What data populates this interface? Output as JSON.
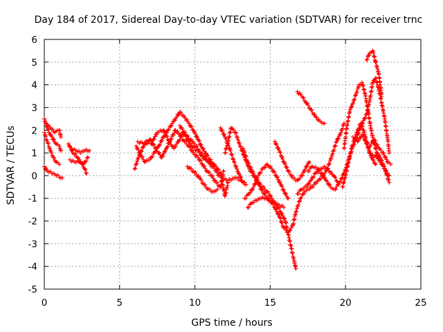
{
  "chart_data": {
    "type": "scatter",
    "title": "Day 184 of 2017, Sidereal Day-to-day VTEC variation (SDTVAR) for receiver trnc",
    "xlabel": "GPS time / hours",
    "ylabel": "SDTVAR / TECUs",
    "xlim": [
      0,
      25
    ],
    "ylim": [
      -5,
      6
    ],
    "xticks": [
      "0",
      "5",
      "10",
      "15",
      "20",
      "25"
    ],
    "yticks": [
      "-5",
      "-4",
      "-3",
      "-2",
      "-1",
      "0",
      "1",
      "2",
      "3",
      "4",
      "5",
      "6"
    ],
    "grid": true,
    "marker": "+",
    "marker_color": "#ff0000",
    "series": [
      {
        "name": "s1",
        "points": [
          [
            0.0,
            2.5
          ],
          [
            0.2,
            2.1
          ],
          [
            0.4,
            1.8
          ],
          [
            0.6,
            1.6
          ],
          [
            0.8,
            1.4
          ],
          [
            1.0,
            1.3
          ],
          [
            1.1,
            1.1
          ]
        ]
      },
      {
        "name": "s2",
        "points": [
          [
            0.1,
            2.3
          ],
          [
            0.4,
            2.1
          ],
          [
            0.7,
            1.9
          ],
          [
            1.0,
            2.0
          ],
          [
            1.1,
            1.7
          ]
        ]
      },
      {
        "name": "s3",
        "points": [
          [
            0.0,
            1.9
          ],
          [
            0.2,
            1.5
          ],
          [
            0.4,
            1.1
          ],
          [
            0.6,
            0.8
          ],
          [
            0.8,
            0.6
          ],
          [
            1.0,
            0.5
          ]
        ]
      },
      {
        "name": "s4",
        "points": [
          [
            0.0,
            0.4
          ],
          [
            0.2,
            0.2
          ],
          [
            0.5,
            0.1
          ],
          [
            0.8,
            0.0
          ],
          [
            1.2,
            -0.1
          ]
        ]
      },
      {
        "name": "s5",
        "points": [
          [
            1.6,
            1.4
          ],
          [
            1.9,
            1.0
          ],
          [
            2.2,
            0.8
          ],
          [
            2.5,
            0.5
          ],
          [
            2.7,
            0.3
          ],
          [
            2.8,
            0.1
          ]
        ]
      },
      {
        "name": "s6",
        "points": [
          [
            1.8,
            1.2
          ],
          [
            2.1,
            1.1
          ],
          [
            2.4,
            1.0
          ],
          [
            2.7,
            1.1
          ],
          [
            3.0,
            1.1
          ]
        ]
      },
      {
        "name": "s7",
        "points": [
          [
            1.7,
            0.7
          ],
          [
            2.0,
            0.6
          ],
          [
            2.3,
            0.6
          ],
          [
            2.6,
            0.5
          ],
          [
            2.9,
            0.8
          ]
        ]
      },
      {
        "name": "s8",
        "points": [
          [
            6.0,
            0.3
          ],
          [
            6.3,
            0.9
          ],
          [
            6.6,
            1.3
          ],
          [
            6.9,
            1.5
          ],
          [
            7.2,
            1.4
          ]
        ]
      },
      {
        "name": "s9",
        "points": [
          [
            6.1,
            1.3
          ],
          [
            6.4,
            0.9
          ],
          [
            6.7,
            0.6
          ],
          [
            7.0,
            0.7
          ],
          [
            7.3,
            1.0
          ],
          [
            7.6,
            1.3
          ],
          [
            7.9,
            1.7
          ],
          [
            8.2,
            2.0
          ],
          [
            8.5,
            2.3
          ],
          [
            8.8,
            2.6
          ],
          [
            9.0,
            2.8
          ],
          [
            9.3,
            2.6
          ],
          [
            9.6,
            2.3
          ],
          [
            9.9,
            2.0
          ],
          [
            10.2,
            1.6
          ],
          [
            10.5,
            1.2
          ],
          [
            10.8,
            0.9
          ],
          [
            11.1,
            0.6
          ],
          [
            11.4,
            0.4
          ],
          [
            11.7,
            0.1
          ],
          [
            11.9,
            -0.6
          ],
          [
            12.0,
            -0.9
          ],
          [
            12.2,
            -0.3
          ]
        ]
      },
      {
        "name": "s10",
        "points": [
          [
            6.2,
            1.5
          ],
          [
            6.6,
            1.4
          ],
          [
            7.0,
            1.6
          ],
          [
            7.4,
            1.2
          ],
          [
            7.8,
            0.8
          ],
          [
            8.1,
            1.2
          ],
          [
            8.4,
            1.6
          ],
          [
            8.7,
            2.0
          ],
          [
            9.0,
            1.8
          ],
          [
            9.3,
            1.5
          ],
          [
            9.6,
            1.3
          ],
          [
            9.9,
            1.0
          ],
          [
            10.2,
            0.8
          ],
          [
            10.5,
            0.5
          ],
          [
            10.8,
            0.2
          ],
          [
            11.1,
            0.0
          ],
          [
            11.4,
            -0.3
          ],
          [
            11.7,
            -0.5
          ],
          [
            11.9,
            0.2
          ]
        ]
      },
      {
        "name": "s11",
        "points": [
          [
            7.1,
            1.4
          ],
          [
            7.5,
            1.9
          ],
          [
            7.9,
            2.0
          ],
          [
            8.3,
            1.5
          ],
          [
            8.6,
            1.2
          ],
          [
            8.9,
            1.5
          ],
          [
            9.2,
            1.9
          ],
          [
            9.5,
            1.6
          ],
          [
            9.8,
            1.3
          ],
          [
            10.1,
            1.1
          ],
          [
            10.4,
            1.0
          ],
          [
            10.7,
            0.8
          ],
          [
            11.0,
            0.5
          ],
          [
            11.3,
            0.3
          ],
          [
            11.6,
            0.0
          ]
        ]
      },
      {
        "name": "s12",
        "points": [
          [
            9.0,
            2.2
          ],
          [
            9.4,
            1.8
          ],
          [
            9.8,
            1.5
          ],
          [
            10.1,
            1.3
          ],
          [
            10.4,
            0.9
          ],
          [
            10.7,
            0.7
          ],
          [
            11.0,
            0.6
          ],
          [
            11.3,
            0.4
          ]
        ]
      },
      {
        "name": "s13",
        "points": [
          [
            9.5,
            0.4
          ],
          [
            9.9,
            0.2
          ],
          [
            10.3,
            -0.1
          ],
          [
            10.6,
            -0.4
          ],
          [
            10.9,
            -0.6
          ],
          [
            11.2,
            -0.7
          ],
          [
            11.5,
            -0.6
          ]
        ]
      },
      {
        "name": "s14",
        "points": [
          [
            11.7,
            2.1
          ],
          [
            12.0,
            1.7
          ],
          [
            12.3,
            1.2
          ],
          [
            12.6,
            0.6
          ],
          [
            12.9,
            0.1
          ],
          [
            13.2,
            -0.3
          ],
          [
            13.4,
            -0.4
          ]
        ]
      },
      {
        "name": "s15",
        "points": [
          [
            11.8,
            -0.1
          ],
          [
            12.1,
            -0.2
          ],
          [
            12.4,
            -0.2
          ],
          [
            12.7,
            -0.1
          ],
          [
            13.0,
            -0.2
          ],
          [
            13.3,
            -0.3
          ]
        ]
      },
      {
        "name": "s16",
        "points": [
          [
            12.0,
            1.0
          ],
          [
            12.2,
            1.5
          ],
          [
            12.4,
            2.1
          ],
          [
            12.7,
            1.9
          ],
          [
            13.0,
            1.3
          ],
          [
            13.3,
            0.8
          ],
          [
            13.6,
            0.3
          ],
          [
            13.9,
            0.0
          ],
          [
            14.2,
            -0.3
          ],
          [
            14.5,
            -0.5
          ],
          [
            14.8,
            -0.7
          ],
          [
            15.1,
            -1.0
          ],
          [
            15.4,
            -1.3
          ],
          [
            15.7,
            -1.6
          ],
          [
            16.0,
            -2.0
          ],
          [
            16.2,
            -2.6
          ],
          [
            16.4,
            -3.2
          ],
          [
            16.6,
            -3.8
          ],
          [
            16.7,
            -4.1
          ]
        ]
      },
      {
        "name": "s17",
        "points": [
          [
            13.2,
            1.2
          ],
          [
            13.5,
            0.6
          ],
          [
            13.8,
            0.2
          ],
          [
            14.1,
            -0.2
          ],
          [
            14.4,
            -0.6
          ],
          [
            14.7,
            -0.9
          ],
          [
            15.0,
            -1.1
          ],
          [
            15.3,
            -1.4
          ],
          [
            15.6,
            -1.8
          ],
          [
            15.9,
            -2.3
          ],
          [
            16.2,
            -2.5
          ],
          [
            16.5,
            -2.2
          ],
          [
            16.7,
            -1.6
          ],
          [
            17.0,
            -1.0
          ],
          [
            17.3,
            -0.7
          ],
          [
            17.6,
            -0.6
          ],
          [
            17.9,
            -0.4
          ],
          [
            18.2,
            -0.2
          ],
          [
            18.5,
            0.0
          ],
          [
            18.8,
            0.3
          ],
          [
            19.1,
            0.9
          ],
          [
            19.4,
            1.5
          ],
          [
            19.7,
            1.9
          ],
          [
            19.9,
            2.3
          ]
        ]
      },
      {
        "name": "s18",
        "points": [
          [
            13.3,
            -1.0
          ],
          [
            13.6,
            -0.8
          ],
          [
            13.9,
            -0.5
          ],
          [
            14.2,
            0.0
          ],
          [
            14.5,
            0.3
          ],
          [
            14.8,
            0.5
          ],
          [
            15.1,
            0.3
          ],
          [
            15.4,
            0.0
          ],
          [
            15.7,
            -0.4
          ],
          [
            16.0,
            -0.8
          ],
          [
            16.2,
            -1.0
          ]
        ]
      },
      {
        "name": "s19",
        "points": [
          [
            13.5,
            -1.4
          ],
          [
            13.8,
            -1.2
          ],
          [
            14.1,
            -1.1
          ],
          [
            14.4,
            -1.0
          ],
          [
            14.7,
            -1.0
          ],
          [
            15.0,
            -1.1
          ],
          [
            15.3,
            -1.2
          ],
          [
            15.6,
            -1.3
          ],
          [
            15.9,
            -1.4
          ]
        ]
      },
      {
        "name": "s20",
        "points": [
          [
            15.3,
            1.5
          ],
          [
            15.6,
            1.1
          ],
          [
            15.9,
            0.6
          ],
          [
            16.2,
            0.2
          ],
          [
            16.5,
            -0.1
          ],
          [
            16.8,
            -0.2
          ],
          [
            17.1,
            0.0
          ],
          [
            17.4,
            0.4
          ],
          [
            17.6,
            0.6
          ]
        ]
      },
      {
        "name": "s21",
        "points": [
          [
            16.8,
            -0.8
          ],
          [
            17.1,
            -0.6
          ],
          [
            17.4,
            -0.5
          ],
          [
            17.7,
            -0.2
          ],
          [
            18.0,
            0.1
          ],
          [
            18.3,
            0.3
          ],
          [
            18.6,
            0.4
          ],
          [
            18.9,
            0.2
          ],
          [
            19.2,
            0.0
          ],
          [
            19.5,
            -0.3
          ]
        ]
      },
      {
        "name": "s22",
        "points": [
          [
            16.8,
            3.7
          ],
          [
            17.1,
            3.5
          ],
          [
            17.4,
            3.2
          ],
          [
            17.7,
            2.9
          ],
          [
            18.0,
            2.6
          ],
          [
            18.3,
            2.4
          ],
          [
            18.6,
            2.3
          ]
        ]
      },
      {
        "name": "s23",
        "points": [
          [
            17.5,
            0.2
          ],
          [
            17.8,
            0.4
          ],
          [
            18.1,
            0.3
          ],
          [
            18.4,
            0.1
          ],
          [
            18.7,
            -0.2
          ],
          [
            19.0,
            -0.5
          ],
          [
            19.3,
            -0.6
          ],
          [
            19.6,
            -0.3
          ],
          [
            19.9,
            0.1
          ],
          [
            20.2,
            0.7
          ],
          [
            20.5,
            1.3
          ],
          [
            20.8,
            1.8
          ],
          [
            21.1,
            2.3
          ],
          [
            21.4,
            2.7
          ],
          [
            21.6,
            3.3
          ],
          [
            21.8,
            4.1
          ],
          [
            22.0,
            4.3
          ],
          [
            22.2,
            3.8
          ],
          [
            22.4,
            3.2
          ],
          [
            22.6,
            2.5
          ],
          [
            22.8,
            1.6
          ],
          [
            22.9,
            1.0
          ]
        ]
      },
      {
        "name": "s24",
        "points": [
          [
            19.8,
            -0.5
          ],
          [
            20.0,
            0.0
          ],
          [
            20.2,
            0.6
          ],
          [
            20.4,
            1.2
          ],
          [
            20.6,
            1.6
          ],
          [
            20.8,
            2.0
          ],
          [
            21.0,
            2.3
          ],
          [
            21.2,
            2.0
          ],
          [
            21.4,
            1.5
          ],
          [
            21.6,
            1.0
          ],
          [
            21.8,
            0.7
          ],
          [
            22.0,
            0.5
          ]
        ]
      },
      {
        "name": "s25",
        "points": [
          [
            19.9,
            1.2
          ],
          [
            20.1,
            2.2
          ],
          [
            20.3,
            2.9
          ],
          [
            20.5,
            3.2
          ],
          [
            20.7,
            3.6
          ],
          [
            20.9,
            4.0
          ],
          [
            21.1,
            4.1
          ],
          [
            21.3,
            3.6
          ],
          [
            21.5,
            2.8
          ],
          [
            21.7,
            2.0
          ],
          [
            21.9,
            1.4
          ],
          [
            22.1,
            1.0
          ],
          [
            22.3,
            0.8
          ],
          [
            22.5,
            0.5
          ],
          [
            22.7,
            0.1
          ],
          [
            22.9,
            -0.3
          ]
        ]
      },
      {
        "name": "s26",
        "points": [
          [
            21.4,
            5.1
          ],
          [
            21.6,
            5.4
          ],
          [
            21.8,
            5.5
          ],
          [
            22.0,
            5.0
          ],
          [
            22.2,
            4.5
          ],
          [
            22.3,
            4.0
          ],
          [
            22.4,
            3.5
          ]
        ]
      },
      {
        "name": "s27",
        "points": [
          [
            20.5,
            1.7
          ],
          [
            20.8,
            1.5
          ],
          [
            21.1,
            1.8
          ],
          [
            21.4,
            1.4
          ],
          [
            21.7,
            0.9
          ],
          [
            22.0,
            0.9
          ],
          [
            22.3,
            0.6
          ],
          [
            22.6,
            0.3
          ],
          [
            22.9,
            0.0
          ]
        ]
      },
      {
        "name": "s28",
        "points": [
          [
            21.6,
            1.3
          ],
          [
            21.9,
            1.6
          ],
          [
            22.2,
            1.2
          ],
          [
            22.5,
            1.0
          ],
          [
            22.8,
            0.6
          ],
          [
            23.0,
            0.5
          ]
        ]
      }
    ]
  }
}
